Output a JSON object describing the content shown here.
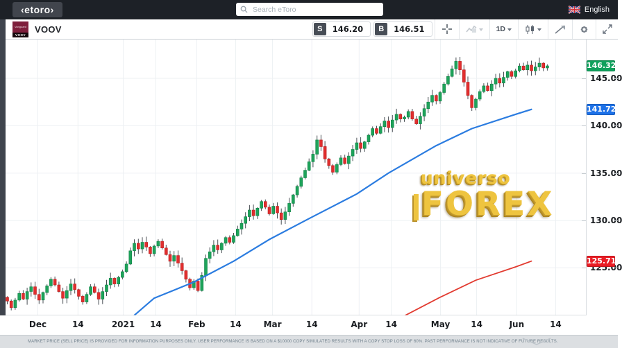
{
  "topbar": {
    "logo_text": "‹etoro›",
    "search_placeholder": "Search eToro",
    "language_label": "English"
  },
  "toolbar": {
    "instrument_symbol": "VOOV",
    "instrument_logo_top": "Vanguard",
    "instrument_logo_bottom": "VOOV",
    "sell_label": "S",
    "sell_price": "146.20",
    "buy_label": "B",
    "buy_price": "146.51",
    "timeframe_label": "1D"
  },
  "watermark": {
    "line1": "universo",
    "line2": "FOREX"
  },
  "disclaimer": "MARKET PRICE (SELL PRICE) IS PROVIDED FOR INFORMATION PURPOSES ONLY. USER PERFORMANCE IS BASED ON A $10000 COPY SIMULATED RESULTS WITH A COPY STOP LOSS OF 60%. PAST PERFORMANCE IS NOT INDICATIVE OF FUTURE RESULTS.",
  "chart_data": {
    "type": "candlestick",
    "symbol": "VOOV",
    "timeframe": "1D",
    "ylim": [
      119.9,
      149.1
    ],
    "grid": true,
    "y_ticks": [
      {
        "label": "145.00",
        "value": 145
      },
      {
        "label": "140.00",
        "value": 140
      },
      {
        "label": "135.00",
        "value": 135
      },
      {
        "label": "130.00",
        "value": 130
      },
      {
        "label": "125.00",
        "value": 125
      }
    ],
    "x_labels": [
      {
        "label": "Dec",
        "i": 7.7
      },
      {
        "label": "14",
        "i": 17.8
      },
      {
        "label": "2021",
        "i": 29.2
      },
      {
        "label": "14",
        "i": 37.4
      },
      {
        "label": "Feb",
        "i": 47.7
      },
      {
        "label": "14",
        "i": 57.5
      },
      {
        "label": "Mar",
        "i": 66.8
      },
      {
        "label": "14",
        "i": 76.7
      },
      {
        "label": "Apr",
        "i": 88.6
      },
      {
        "label": "14",
        "i": 96.7
      },
      {
        "label": "May",
        "i": 109.1
      },
      {
        "label": "14",
        "i": 118.2
      },
      {
        "label": "Jun",
        "i": 128.3
      },
      {
        "label": "14",
        "i": 138.1
      }
    ],
    "closes": [
      121.5,
      120.8,
      121.6,
      122.3,
      121.7,
      122.5,
      123.0,
      122.2,
      121.6,
      122.4,
      123.1,
      123.8,
      123.2,
      122.5,
      121.8,
      122.6,
      123.3,
      122.7,
      122.0,
      121.4,
      122.2,
      123.0,
      122.4,
      121.7,
      122.5,
      123.2,
      123.9,
      123.3,
      124.0,
      124.6,
      125.4,
      126.8,
      127.6,
      127.0,
      127.7,
      127.2,
      126.5,
      127.3,
      127.8,
      127.1,
      126.4,
      125.7,
      126.3,
      125.5,
      124.7,
      123.8,
      122.9,
      123.6,
      122.6,
      124.2,
      126.0,
      126.7,
      127.4,
      126.9,
      127.6,
      128.2,
      127.7,
      128.4,
      129.1,
      129.7,
      130.4,
      131.1,
      130.5,
      131.3,
      132.0,
      131.4,
      130.7,
      131.5,
      130.8,
      130.1,
      130.9,
      131.8,
      132.7,
      133.6,
      134.5,
      135.3,
      136.2,
      137.0,
      138.5,
      137.8,
      136.5,
      135.8,
      135.1,
      135.9,
      136.6,
      136.0,
      136.8,
      137.5,
      138.2,
      137.6,
      138.3,
      139.0,
      139.7,
      139.2,
      139.9,
      140.5,
      139.8,
      140.6,
      141.2,
      140.7,
      140.9,
      141.5,
      140.7,
      140.2,
      141.0,
      141.8,
      142.5,
      143.2,
      142.6,
      143.5,
      144.4,
      145.2,
      146.0,
      146.8,
      145.9,
      144.6,
      143.2,
      141.9,
      142.8,
      143.6,
      144.2,
      143.7,
      144.4,
      145.0,
      144.5,
      145.1,
      145.7,
      145.2,
      145.8,
      146.3,
      145.9,
      146.4,
      145.8,
      146.2,
      146.6,
      146.1,
      146.32
    ],
    "overlays": [
      {
        "name": "ma-blue",
        "color": "#2b7ce0",
        "points": [
          [
            32,
            120.0
          ],
          [
            37,
            121.8
          ],
          [
            47,
            123.5
          ],
          [
            57,
            125.7
          ],
          [
            66,
            128.0
          ],
          [
            76,
            130.2
          ],
          [
            88,
            132.8
          ],
          [
            96,
            135.0
          ],
          [
            108,
            137.9
          ],
          [
            117,
            139.7
          ],
          [
            128,
            141.2
          ],
          [
            132,
            141.72
          ]
        ]
      },
      {
        "name": "trend-red",
        "color": "#e23b30",
        "points": [
          [
            98,
            119.5
          ],
          [
            109,
            121.9
          ],
          [
            118,
            123.7
          ],
          [
            128,
            125.1
          ],
          [
            132,
            125.71
          ]
        ]
      }
    ],
    "price_badges": [
      {
        "name": "last-price-badge",
        "label": "146.32",
        "value": 146.32,
        "color": "#0fa05c"
      },
      {
        "name": "ma-price-badge",
        "label": "141.72",
        "value": 141.72,
        "color": "#1e72e8"
      },
      {
        "name": "trend-price-badge",
        "label": "125.71",
        "value": 125.71,
        "color": "#ea1d25"
      }
    ],
    "candle_up_color": "#1ea35a",
    "candle_down_color": "#e12e2e",
    "grid_color": "#edf0f3"
  }
}
